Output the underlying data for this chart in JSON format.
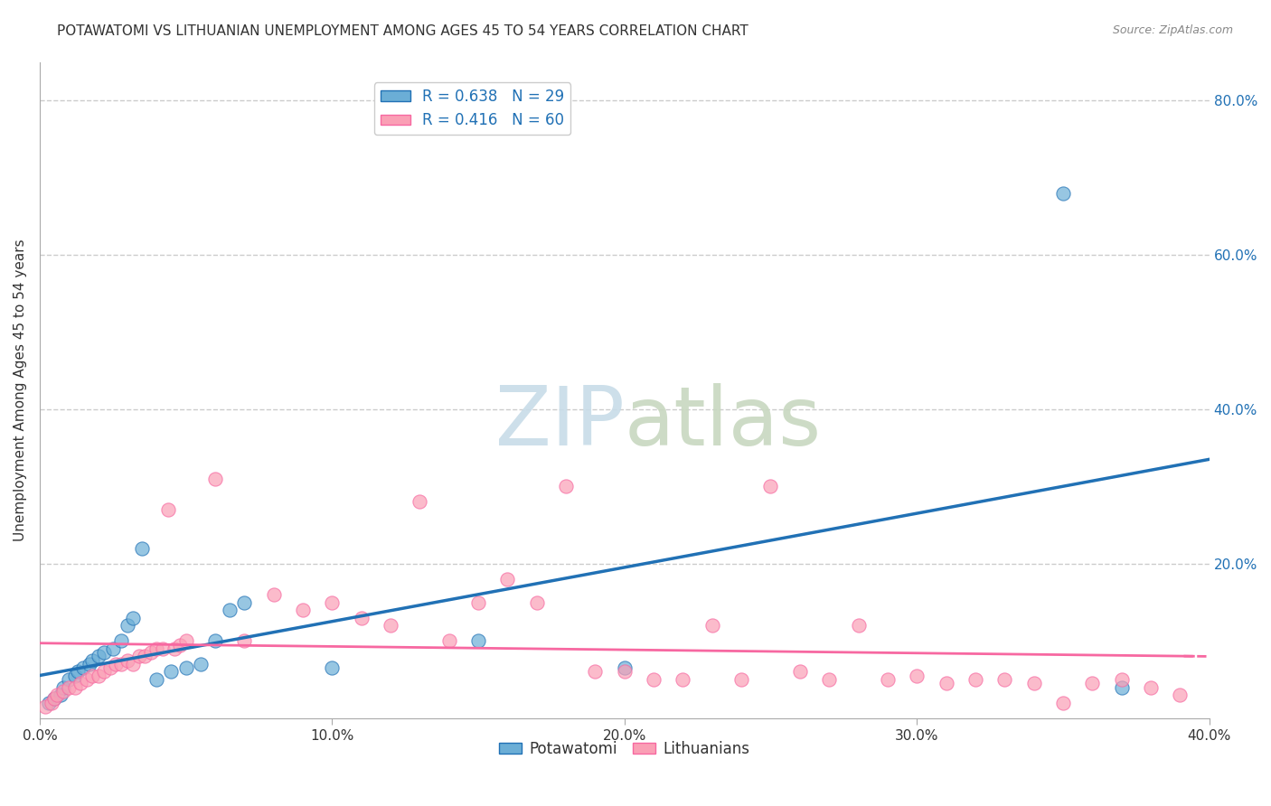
{
  "title": "POTAWATOMI VS LITHUANIAN UNEMPLOYMENT AMONG AGES 45 TO 54 YEARS CORRELATION CHART",
  "source": "Source: ZipAtlas.com",
  "ylabel": "Unemployment Among Ages 45 to 54 years",
  "xlim": [
    0.0,
    0.4
  ],
  "ylim": [
    0.0,
    0.85
  ],
  "xtick_labels": [
    "0.0%",
    "10.0%",
    "20.0%",
    "30.0%",
    "40.0%"
  ],
  "xtick_vals": [
    0.0,
    0.1,
    0.2,
    0.3,
    0.4
  ],
  "ytick_labels_right": [
    "80.0%",
    "60.0%",
    "40.0%",
    "20.0%"
  ],
  "ytick_vals_right": [
    0.8,
    0.6,
    0.4,
    0.2
  ],
  "grid_color": "#cccccc",
  "bg_color": "#ffffff",
  "legend_r1": "R = 0.638",
  "legend_n1": "N = 29",
  "legend_r2": "R = 0.416",
  "legend_n2": "N = 60",
  "color_potawatomi": "#6baed6",
  "color_lithuanian": "#fa9fb5",
  "color_potawatomi_line": "#2171b5",
  "color_lithuanian_line": "#f768a1",
  "label_potawatomi": "Potawatomi",
  "label_lithuanian": "Lithuanians",
  "potawatomi_x": [
    0.003,
    0.005,
    0.007,
    0.008,
    0.01,
    0.012,
    0.013,
    0.015,
    0.017,
    0.018,
    0.02,
    0.022,
    0.025,
    0.028,
    0.03,
    0.032,
    0.035,
    0.04,
    0.045,
    0.05,
    0.055,
    0.06,
    0.065,
    0.07,
    0.1,
    0.15,
    0.2,
    0.35,
    0.37
  ],
  "potawatomi_y": [
    0.02,
    0.025,
    0.03,
    0.04,
    0.05,
    0.055,
    0.06,
    0.065,
    0.07,
    0.075,
    0.08,
    0.085,
    0.09,
    0.1,
    0.12,
    0.13,
    0.22,
    0.05,
    0.06,
    0.065,
    0.07,
    0.1,
    0.14,
    0.15,
    0.065,
    0.1,
    0.065,
    0.68,
    0.04
  ],
  "lithuanian_x": [
    0.002,
    0.004,
    0.005,
    0.006,
    0.008,
    0.01,
    0.012,
    0.014,
    0.016,
    0.018,
    0.02,
    0.022,
    0.024,
    0.026,
    0.028,
    0.03,
    0.032,
    0.034,
    0.036,
    0.038,
    0.04,
    0.042,
    0.044,
    0.046,
    0.048,
    0.05,
    0.06,
    0.07,
    0.08,
    0.09,
    0.1,
    0.11,
    0.12,
    0.13,
    0.14,
    0.15,
    0.16,
    0.17,
    0.18,
    0.19,
    0.2,
    0.21,
    0.22,
    0.23,
    0.24,
    0.25,
    0.26,
    0.27,
    0.28,
    0.29,
    0.3,
    0.31,
    0.32,
    0.33,
    0.34,
    0.35,
    0.36,
    0.37,
    0.38,
    0.39
  ],
  "lithuanian_y": [
    0.015,
    0.02,
    0.025,
    0.03,
    0.035,
    0.04,
    0.04,
    0.045,
    0.05,
    0.055,
    0.055,
    0.06,
    0.065,
    0.07,
    0.07,
    0.075,
    0.07,
    0.08,
    0.08,
    0.085,
    0.09,
    0.09,
    0.27,
    0.09,
    0.095,
    0.1,
    0.31,
    0.1,
    0.16,
    0.14,
    0.15,
    0.13,
    0.12,
    0.28,
    0.1,
    0.15,
    0.18,
    0.15,
    0.3,
    0.06,
    0.06,
    0.05,
    0.05,
    0.12,
    0.05,
    0.3,
    0.06,
    0.05,
    0.12,
    0.05,
    0.055,
    0.045,
    0.05,
    0.05,
    0.045,
    0.02,
    0.045,
    0.05,
    0.04,
    0.03
  ]
}
